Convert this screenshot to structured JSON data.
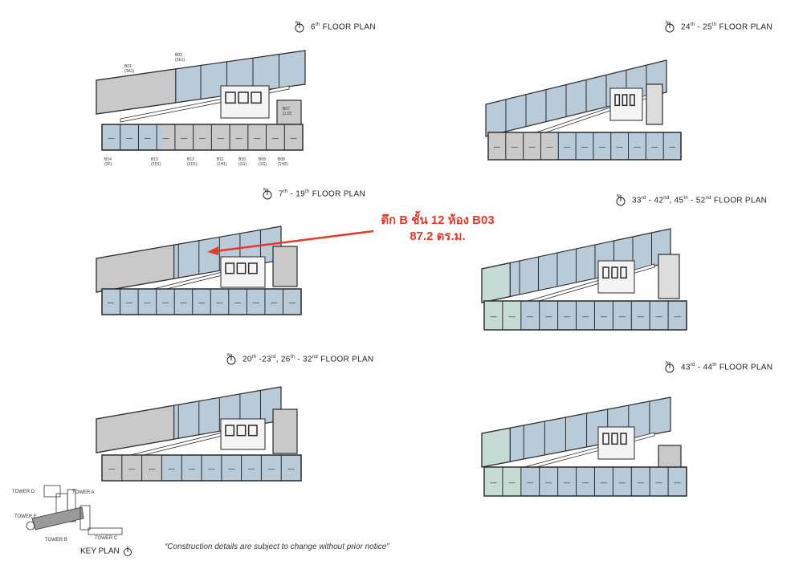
{
  "annotation": {
    "line1": "ตึก B ชั้น 12 ห้อง B03",
    "line2": "87.2 ตร.ม."
  },
  "floor_plans": [
    {
      "id": "p1",
      "title_parts": [
        "6",
        "th",
        " FLOOR PLAN"
      ]
    },
    {
      "id": "p2",
      "title_parts": [
        "24",
        "th",
        " - 25",
        "th",
        " FLOOR PLAN"
      ]
    },
    {
      "id": "p3",
      "title_parts": [
        "7",
        "th",
        " - 19",
        "th",
        " FLOOR PLAN"
      ]
    },
    {
      "id": "p4",
      "title_parts": [
        "33",
        "rd",
        " - 42",
        "nd",
        ", 45",
        "th",
        " - 52",
        "nd",
        " FLOOR PLAN"
      ]
    },
    {
      "id": "p5",
      "title_parts": [
        "20",
        "th",
        " -23",
        "rd",
        ", 26",
        "th",
        " - 32",
        "nd",
        " FLOOR PLAN"
      ]
    },
    {
      "id": "p6",
      "title_parts": [
        "43",
        "rd",
        " - 44",
        "th",
        " FLOOR PLAN"
      ]
    }
  ],
  "key_plan": {
    "title": "KEY PLAN",
    "tower_a": "TOWER A",
    "tower_b": "TOWER B",
    "tower_c": "TOWER C",
    "tower_d": "TOWER D",
    "tower_e": "TOWER E"
  },
  "unit_labels": {
    "b01": "B01 (3A1)",
    "b03": "B03 (2E1)",
    "b07": "B07 (1J2)",
    "b14": "B14 (3F)",
    "b13": "B13 (2D1)",
    "b12": "B12 (2D1)",
    "b11": "B11 (1H1)",
    "b10": "B10 (1G)",
    "b09": "B09 (1G)",
    "b08": "B08 (1H2)"
  },
  "disclaimer": "“Construction details are subject to change without prior notice”",
  "colors": {
    "annotation": "#e53a2a",
    "unit_blue": "#b9cad9",
    "unit_gray": "#c9c9c9",
    "unit_green": "#c6dbd3",
    "wall": "#2a2a2a"
  }
}
